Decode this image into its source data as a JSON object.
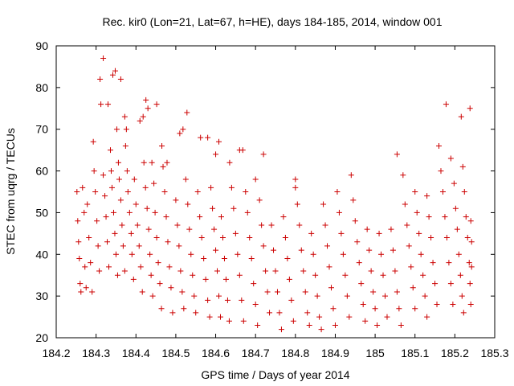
{
  "chart_data": {
    "type": "scatter",
    "title": "Rec. kir0 (Lon=21, Lat=67, h=HE), days 184-185, 2014, window 001",
    "xlabel": "GPS time / Days of year 2014",
    "ylabel": "STEC from uqrg / TECUs",
    "xlim": [
      184.2,
      185.3
    ],
    "ylim": [
      20,
      90
    ],
    "xticks": [
      "184.2",
      "184.3",
      "184.4",
      "184.5",
      "184.6",
      "184.7",
      "184.8",
      "184.9",
      "185",
      "185.1",
      "185.2",
      "185.3"
    ],
    "yticks": [
      "20",
      "30",
      "40",
      "50",
      "60",
      "70",
      "80",
      "90"
    ],
    "grid": false,
    "legend": "none",
    "marker": "plus",
    "color": "#cc0000",
    "points": [
      [
        184.252,
        55
      ],
      [
        184.254,
        48
      ],
      [
        184.256,
        43
      ],
      [
        184.258,
        39
      ],
      [
        184.26,
        33
      ],
      [
        184.262,
        31
      ],
      [
        184.266,
        56
      ],
      [
        184.27,
        50
      ],
      [
        184.272,
        37
      ],
      [
        184.275,
        32
      ],
      [
        184.278,
        52
      ],
      [
        184.282,
        44
      ],
      [
        184.286,
        38
      ],
      [
        184.29,
        31
      ],
      [
        184.293,
        67
      ],
      [
        184.295,
        60
      ],
      [
        184.298,
        55
      ],
      [
        184.302,
        48
      ],
      [
        184.305,
        42
      ],
      [
        184.308,
        36
      ],
      [
        184.31,
        82
      ],
      [
        184.312,
        76
      ],
      [
        184.318,
        59
      ],
      [
        184.322,
        54
      ],
      [
        184.325,
        49
      ],
      [
        184.328,
        43
      ],
      [
        184.332,
        37
      ],
      [
        184.318,
        87
      ],
      [
        184.33,
        76
      ],
      [
        184.336,
        65
      ],
      [
        184.338,
        60
      ],
      [
        184.34,
        56
      ],
      [
        184.344,
        50
      ],
      [
        184.347,
        45
      ],
      [
        184.35,
        40
      ],
      [
        184.354,
        35
      ],
      [
        184.342,
        83
      ],
      [
        184.348,
        84
      ],
      [
        184.352,
        70
      ],
      [
        184.356,
        62
      ],
      [
        184.358,
        58
      ],
      [
        184.362,
        53
      ],
      [
        184.365,
        47
      ],
      [
        184.368,
        42
      ],
      [
        184.372,
        36
      ],
      [
        184.362,
        82
      ],
      [
        184.372,
        73
      ],
      [
        184.374,
        66
      ],
      [
        184.378,
        60
      ],
      [
        184.38,
        55
      ],
      [
        184.384,
        50
      ],
      [
        184.388,
        45
      ],
      [
        184.39,
        40
      ],
      [
        184.394,
        34
      ],
      [
        184.376,
        70
      ],
      [
        184.396,
        58
      ],
      [
        184.4,
        52
      ],
      [
        184.404,
        47
      ],
      [
        184.408,
        42
      ],
      [
        184.412,
        37
      ],
      [
        184.416,
        31
      ],
      [
        184.41,
        72
      ],
      [
        184.418,
        73
      ],
      [
        184.42,
        62
      ],
      [
        184.424,
        56
      ],
      [
        184.428,
        51
      ],
      [
        184.432,
        46
      ],
      [
        184.435,
        40
      ],
      [
        184.438,
        35
      ],
      [
        184.442,
        30
      ],
      [
        184.425,
        77
      ],
      [
        184.43,
        75
      ],
      [
        184.44,
        62
      ],
      [
        184.445,
        57
      ],
      [
        184.448,
        50
      ],
      [
        184.452,
        44
      ],
      [
        184.456,
        38
      ],
      [
        184.46,
        33
      ],
      [
        184.464,
        27
      ],
      [
        184.452,
        76
      ],
      [
        184.465,
        66
      ],
      [
        184.468,
        61
      ],
      [
        184.472,
        55
      ],
      [
        184.476,
        49
      ],
      [
        184.48,
        43
      ],
      [
        184.484,
        37
      ],
      [
        184.488,
        32
      ],
      [
        184.492,
        26
      ],
      [
        184.478,
        62
      ],
      [
        184.5,
        53
      ],
      [
        184.504,
        47
      ],
      [
        184.508,
        42
      ],
      [
        184.512,
        36
      ],
      [
        184.516,
        31
      ],
      [
        184.52,
        27
      ],
      [
        184.51,
        69
      ],
      [
        184.518,
        70
      ],
      [
        184.525,
        58
      ],
      [
        184.53,
        52
      ],
      [
        184.534,
        46
      ],
      [
        184.538,
        40
      ],
      [
        184.542,
        35
      ],
      [
        184.546,
        30
      ],
      [
        184.55,
        26
      ],
      [
        184.528,
        74
      ],
      [
        184.555,
        55
      ],
      [
        184.56,
        49
      ],
      [
        184.565,
        44
      ],
      [
        184.57,
        39
      ],
      [
        184.575,
        34
      ],
      [
        184.58,
        29
      ],
      [
        184.585,
        25
      ],
      [
        184.562,
        68
      ],
      [
        184.58,
        68
      ],
      [
        184.588,
        56
      ],
      [
        184.592,
        51
      ],
      [
        184.596,
        46
      ],
      [
        184.6,
        41
      ],
      [
        184.604,
        36
      ],
      [
        184.608,
        30
      ],
      [
        184.612,
        25
      ],
      [
        184.6,
        64
      ],
      [
        184.608,
        67
      ],
      [
        184.614,
        49
      ],
      [
        184.618,
        44
      ],
      [
        184.622,
        39
      ],
      [
        184.626,
        34
      ],
      [
        184.63,
        29
      ],
      [
        184.634,
        24
      ],
      [
        184.635,
        62
      ],
      [
        184.64,
        56
      ],
      [
        184.645,
        51
      ],
      [
        184.65,
        45
      ],
      [
        184.655,
        40
      ],
      [
        184.66,
        35
      ],
      [
        184.665,
        29
      ],
      [
        184.67,
        24
      ],
      [
        184.66,
        65
      ],
      [
        184.668,
        65
      ],
      [
        184.675,
        55
      ],
      [
        184.68,
        50
      ],
      [
        184.685,
        44
      ],
      [
        184.69,
        39
      ],
      [
        184.695,
        33
      ],
      [
        184.7,
        28
      ],
      [
        184.705,
        23
      ],
      [
        184.7,
        58
      ],
      [
        184.71,
        53
      ],
      [
        184.715,
        47
      ],
      [
        184.72,
        42
      ],
      [
        184.725,
        36
      ],
      [
        184.73,
        31
      ],
      [
        184.735,
        26
      ],
      [
        184.72,
        64
      ],
      [
        184.74,
        47
      ],
      [
        184.745,
        41
      ],
      [
        184.75,
        36
      ],
      [
        184.755,
        31
      ],
      [
        184.76,
        26
      ],
      [
        184.765,
        22
      ],
      [
        184.77,
        49
      ],
      [
        184.775,
        44
      ],
      [
        184.78,
        39
      ],
      [
        184.785,
        34
      ],
      [
        184.79,
        29
      ],
      [
        184.795,
        24
      ],
      [
        184.8,
        58
      ],
      [
        184.8,
        56
      ],
      [
        184.805,
        52
      ],
      [
        184.81,
        47
      ],
      [
        184.815,
        41
      ],
      [
        184.82,
        36
      ],
      [
        184.825,
        31
      ],
      [
        184.83,
        26
      ],
      [
        184.835,
        23
      ],
      [
        184.84,
        45
      ],
      [
        184.845,
        40
      ],
      [
        184.85,
        35
      ],
      [
        184.855,
        30
      ],
      [
        184.86,
        25
      ],
      [
        184.865,
        22
      ],
      [
        184.87,
        52
      ],
      [
        184.875,
        47
      ],
      [
        184.88,
        42
      ],
      [
        184.885,
        37
      ],
      [
        184.89,
        32
      ],
      [
        184.895,
        27
      ],
      [
        184.9,
        23
      ],
      [
        184.905,
        55
      ],
      [
        184.91,
        50
      ],
      [
        184.915,
        45
      ],
      [
        184.92,
        40
      ],
      [
        184.925,
        35
      ],
      [
        184.93,
        30
      ],
      [
        184.935,
        25
      ],
      [
        184.94,
        59
      ],
      [
        184.945,
        53
      ],
      [
        184.95,
        48
      ],
      [
        184.955,
        43
      ],
      [
        184.96,
        38
      ],
      [
        184.965,
        33
      ],
      [
        184.97,
        28
      ],
      [
        184.975,
        24
      ],
      [
        184.98,
        46
      ],
      [
        184.985,
        41
      ],
      [
        184.99,
        36
      ],
      [
        184.995,
        31
      ],
      [
        185,
        27
      ],
      [
        185.005,
        23
      ],
      [
        185.01,
        45
      ],
      [
        185.015,
        40
      ],
      [
        185.02,
        35
      ],
      [
        185.025,
        30
      ],
      [
        185.03,
        25
      ],
      [
        185.04,
        46
      ],
      [
        185.045,
        41
      ],
      [
        185.05,
        36
      ],
      [
        185.055,
        31
      ],
      [
        185.06,
        27
      ],
      [
        185.065,
        23
      ],
      [
        185.055,
        64
      ],
      [
        185.07,
        59
      ],
      [
        185.075,
        52
      ],
      [
        185.08,
        47
      ],
      [
        185.085,
        42
      ],
      [
        185.09,
        37
      ],
      [
        185.095,
        32
      ],
      [
        185.1,
        27
      ],
      [
        185.1,
        55
      ],
      [
        185.105,
        50
      ],
      [
        185.11,
        45
      ],
      [
        185.115,
        40
      ],
      [
        185.12,
        35
      ],
      [
        185.125,
        30
      ],
      [
        185.13,
        25
      ],
      [
        185.13,
        54
      ],
      [
        185.135,
        49
      ],
      [
        185.14,
        44
      ],
      [
        185.145,
        38
      ],
      [
        185.15,
        33
      ],
      [
        185.155,
        28
      ],
      [
        185.16,
        66
      ],
      [
        185.165,
        60
      ],
      [
        185.17,
        55
      ],
      [
        185.175,
        49
      ],
      [
        185.18,
        44
      ],
      [
        185.185,
        38
      ],
      [
        185.19,
        33
      ],
      [
        185.195,
        28
      ],
      [
        185.178,
        76
      ],
      [
        185.19,
        63
      ],
      [
        185.198,
        57
      ],
      [
        185.202,
        51
      ],
      [
        185.206,
        46
      ],
      [
        185.21,
        40
      ],
      [
        185.214,
        35
      ],
      [
        185.218,
        30
      ],
      [
        185.222,
        26
      ],
      [
        185.216,
        73
      ],
      [
        185.22,
        61
      ],
      [
        185.224,
        55
      ],
      [
        185.228,
        49
      ],
      [
        185.232,
        44
      ],
      [
        185.236,
        38
      ],
      [
        185.238,
        33
      ],
      [
        185.24,
        28
      ],
      [
        185.238,
        75
      ],
      [
        185.24,
        48
      ],
      [
        185.242,
        43
      ],
      [
        185.242,
        37
      ]
    ]
  }
}
